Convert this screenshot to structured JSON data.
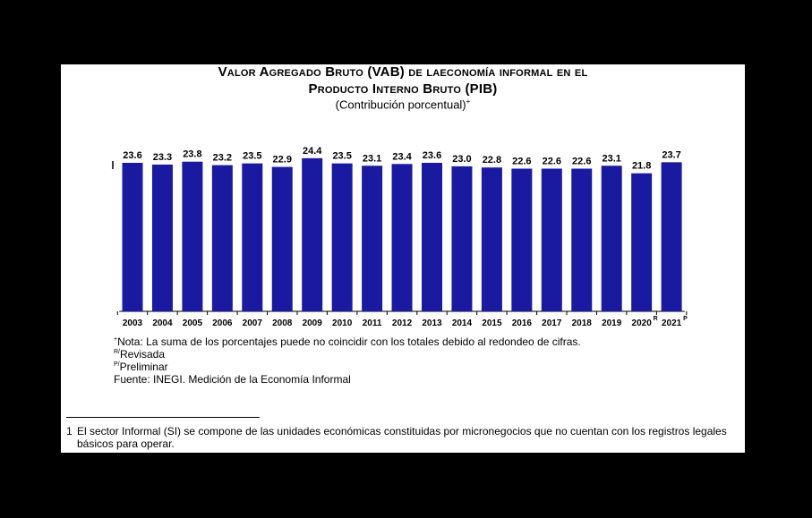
{
  "chart_data": {
    "type": "bar",
    "title_line1": "Valor Agregado Bruto (VAB) de laeconomía informal en el",
    "title_line2": "Producto Interno Bruto (PIB)",
    "subtitle": "(Contribución porcentual)",
    "subtitle_sup": "+",
    "categories": [
      "2003",
      "2004",
      "2005",
      "2006",
      "2007",
      "2008",
      "2009",
      "2010",
      "2011",
      "2012",
      "2013",
      "2014",
      "2015",
      "2016",
      "2017",
      "2018",
      "2019",
      "2020",
      "2021"
    ],
    "category_superscripts": [
      "",
      "",
      "",
      "",
      "",
      "",
      "",
      "",
      "",
      "",
      "",
      "",
      "",
      "",
      "",
      "",
      "",
      "R",
      "P"
    ],
    "values": [
      23.6,
      23.3,
      23.8,
      23.2,
      23.5,
      22.9,
      24.4,
      23.5,
      23.1,
      23.4,
      23.6,
      23.0,
      22.8,
      22.6,
      22.6,
      22.6,
      23.1,
      21.8,
      23.7
    ],
    "value_labels": [
      "23.6",
      "23.3",
      "23.8",
      "23.2",
      "23.5",
      "22.9",
      "24.4",
      "23.5",
      "23.1",
      "23.4",
      "23.6",
      "23.0",
      "22.8",
      "22.6",
      "22.6",
      "22.6",
      "23.1",
      "21.8",
      "23.7"
    ],
    "bar_color": "#1a1aa0",
    "axis_break": true,
    "xlabel": "",
    "ylabel": ""
  },
  "notes": {
    "nota_sup": "+",
    "nota_text": "Nota: La suma de los porcentajes puede no coincidir con los totales debido al redondeo de cifras.",
    "revisada_sup": "R/",
    "revisada_text": "Revisada",
    "preliminar_sup": "P/",
    "preliminar_text": "Preliminar",
    "fuente": "Fuente: INEGI. Medición de la Economía Informal"
  },
  "footnote": {
    "number": "1",
    "text": "El sector Informal (SI) se compone de las unidades económicas constituidas por micronegocios que no cuentan con los registros legales básicos para operar."
  }
}
